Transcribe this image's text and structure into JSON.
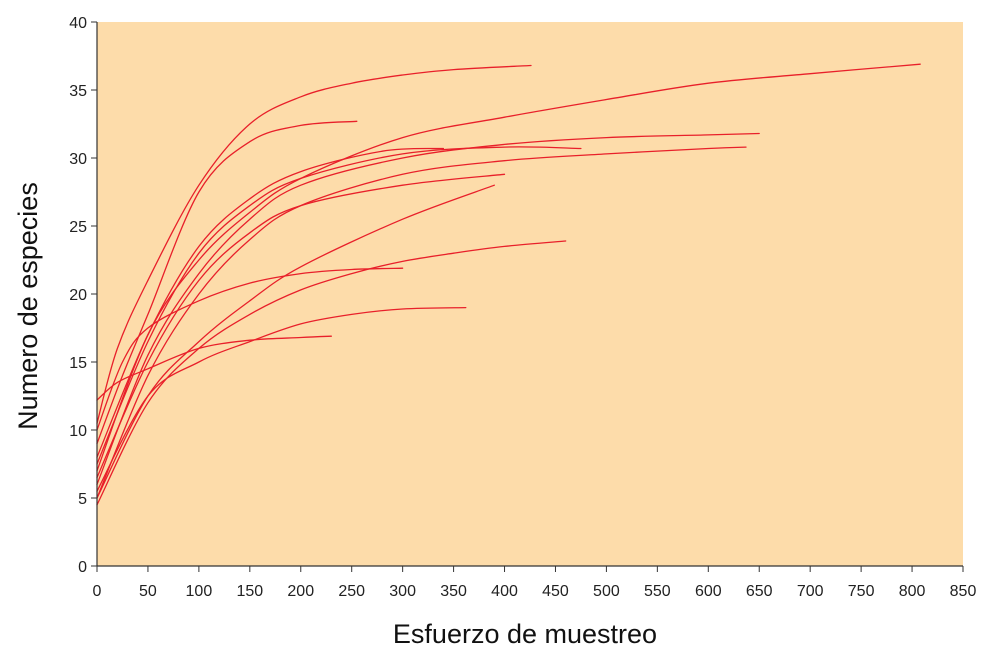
{
  "chart_data": {
    "type": "line",
    "title": "",
    "xlabel": "Esfuerzo de muestreo",
    "ylabel": "Numero de especies",
    "xlim": [
      0,
      850
    ],
    "ylim": [
      0,
      40
    ],
    "xticks": [
      0,
      50,
      100,
      150,
      200,
      250,
      300,
      350,
      400,
      450,
      500,
      550,
      600,
      650,
      700,
      750,
      800,
      850
    ],
    "yticks": [
      0,
      5,
      10,
      15,
      20,
      25,
      30,
      35,
      40
    ],
    "grid": false,
    "legend": "none",
    "colors": {
      "plot_background": "#fddcaa",
      "line": "#e8202a",
      "axis": "#333333"
    },
    "series": [
      {
        "points": [
          [
            0,
            10.5
          ],
          [
            20,
            16
          ],
          [
            50,
            21
          ],
          [
            100,
            28
          ],
          [
            150,
            32.5
          ],
          [
            200,
            34.5
          ],
          [
            250,
            35.5
          ],
          [
            300,
            36.1
          ],
          [
            350,
            36.5
          ],
          [
            426,
            36.8
          ]
        ]
      },
      {
        "points": [
          [
            0,
            9
          ],
          [
            25,
            14
          ],
          [
            50,
            18.5
          ],
          [
            100,
            27.5
          ],
          [
            150,
            31.2
          ],
          [
            200,
            32.4
          ],
          [
            255,
            32.7
          ]
        ]
      },
      {
        "points": [
          [
            0,
            7
          ],
          [
            50,
            17
          ],
          [
            100,
            22.5
          ],
          [
            150,
            26
          ],
          [
            200,
            28.5
          ],
          [
            300,
            31.5
          ],
          [
            400,
            33
          ],
          [
            500,
            34.3
          ],
          [
            600,
            35.5
          ],
          [
            700,
            36.2
          ],
          [
            808,
            36.9
          ]
        ]
      },
      {
        "points": [
          [
            0,
            6
          ],
          [
            50,
            15.5
          ],
          [
            100,
            21.5
          ],
          [
            150,
            25.5
          ],
          [
            200,
            28
          ],
          [
            300,
            30
          ],
          [
            400,
            31
          ],
          [
            500,
            31.5
          ],
          [
            600,
            31.7
          ],
          [
            650,
            31.8
          ]
        ]
      },
      {
        "points": [
          [
            0,
            5
          ],
          [
            50,
            14
          ],
          [
            100,
            20
          ],
          [
            150,
            24
          ],
          [
            200,
            26.5
          ],
          [
            300,
            28.8
          ],
          [
            400,
            29.8
          ],
          [
            500,
            30.3
          ],
          [
            600,
            30.7
          ],
          [
            637,
            30.8
          ]
        ]
      },
      {
        "points": [
          [
            0,
            8
          ],
          [
            50,
            17
          ],
          [
            100,
            23.5
          ],
          [
            150,
            27
          ],
          [
            200,
            29
          ],
          [
            280,
            30.5
          ],
          [
            340,
            30.7
          ]
        ]
      },
      {
        "points": [
          [
            0,
            7.5
          ],
          [
            50,
            16.5
          ],
          [
            100,
            23
          ],
          [
            150,
            26.5
          ],
          [
            200,
            28.5
          ],
          [
            300,
            30.3
          ],
          [
            400,
            30.8
          ],
          [
            475,
            30.7
          ]
        ]
      },
      {
        "points": [
          [
            0,
            6.5
          ],
          [
            50,
            15
          ],
          [
            100,
            21
          ],
          [
            150,
            24.5
          ],
          [
            200,
            26.5
          ],
          [
            300,
            28
          ],
          [
            400,
            28.8
          ]
        ]
      },
      {
        "points": [
          [
            0,
            5
          ],
          [
            50,
            12.5
          ],
          [
            100,
            16.5
          ],
          [
            150,
            19.5
          ],
          [
            200,
            22
          ],
          [
            300,
            25.5
          ],
          [
            390,
            28
          ]
        ]
      },
      {
        "points": [
          [
            0,
            4.5
          ],
          [
            50,
            12
          ],
          [
            100,
            16
          ],
          [
            150,
            18.5
          ],
          [
            200,
            20.3
          ],
          [
            250,
            21.5
          ],
          [
            300,
            22.4
          ],
          [
            350,
            23
          ],
          [
            400,
            23.5
          ],
          [
            460,
            23.9
          ]
        ]
      },
      {
        "points": [
          [
            0,
            10
          ],
          [
            25,
            15
          ],
          [
            50,
            17.5
          ],
          [
            100,
            19.5
          ],
          [
            150,
            20.8
          ],
          [
            200,
            21.5
          ],
          [
            250,
            21.8
          ],
          [
            300,
            21.9
          ]
        ]
      },
      {
        "points": [
          [
            0,
            5.5
          ],
          [
            50,
            12.5
          ],
          [
            100,
            15
          ],
          [
            150,
            16.5
          ],
          [
            200,
            17.8
          ],
          [
            250,
            18.5
          ],
          [
            300,
            18.9
          ],
          [
            362,
            19
          ]
        ]
      },
      {
        "points": [
          [
            0,
            12.2
          ],
          [
            20,
            13.5
          ],
          [
            50,
            14.5
          ],
          [
            100,
            16
          ],
          [
            150,
            16.6
          ],
          [
            200,
            16.8
          ],
          [
            230,
            16.9
          ]
        ]
      }
    ]
  }
}
